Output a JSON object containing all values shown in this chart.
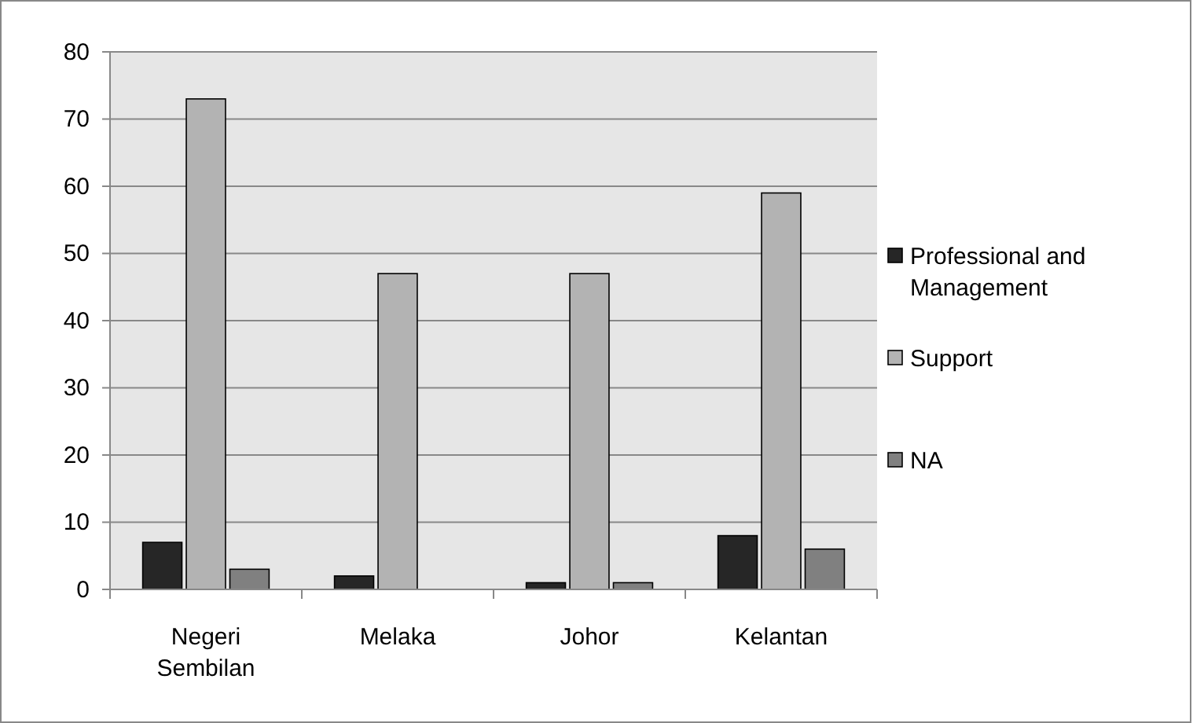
{
  "chart_data": {
    "type": "bar",
    "categories": [
      "Negeri Sembilan",
      "Melaka",
      "Johor",
      "Kelantan"
    ],
    "series": [
      {
        "name": "Professional and Management",
        "color": "#262626",
        "values": [
          7,
          2,
          1,
          8
        ]
      },
      {
        "name": "Support",
        "color": "#b3b3b3",
        "values": [
          73,
          47,
          47,
          59
        ]
      },
      {
        "name": "NA",
        "color": "#808080",
        "values": [
          3,
          0,
          1,
          6
        ]
      }
    ],
    "ylim": [
      0,
      80
    ],
    "yticks": [
      0,
      10,
      20,
      30,
      40,
      50,
      60,
      70,
      80
    ],
    "grid": "y",
    "legend": "right"
  }
}
